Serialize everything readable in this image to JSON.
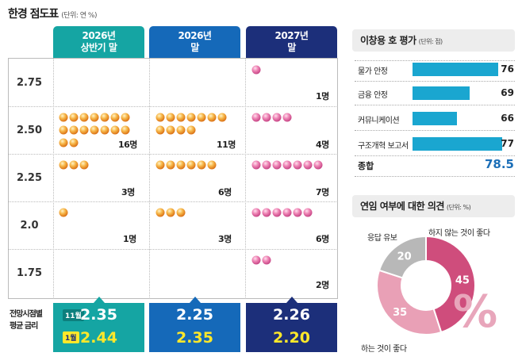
{
  "dot_chart": {
    "title": "한경 점도표",
    "unit": "(단위: 연 %)",
    "columns": [
      {
        "label_line1": "2026년",
        "label_line2": "상반기 말",
        "color": "#15a5a3",
        "dot": "orange"
      },
      {
        "label_line1": "2026년",
        "label_line2": "말",
        "color": "#1569b9",
        "dot": "orange"
      },
      {
        "label_line1": "2027년",
        "label_line2": "말",
        "color": "#1c2f7a",
        "dot": "pink"
      }
    ],
    "rows": [
      "2.75",
      "2.50",
      "2.25",
      "2.0",
      "1.75"
    ],
    "count_labels": [
      [
        "",
        "",
        "1명"
      ],
      [
        "16명",
        "11명",
        "4명"
      ],
      [
        "3명",
        "6명",
        "7명"
      ],
      [
        "1명",
        "3명",
        "6명"
      ],
      [
        "",
        "",
        "2명"
      ]
    ],
    "legend_line1": "전망시점별",
    "legend_line2": "평균 금리",
    "month_nov": "11월",
    "month_jan": "1월",
    "averages_nov": [
      "2.35",
      "2.25",
      "2.26"
    ],
    "averages_jan": [
      "2.44",
      "2.35",
      "2.20"
    ]
  },
  "chart_data": [
    {
      "type": "scatter",
      "title": "한경 점도표",
      "unit": "(단위: 연 %)",
      "categories": [
        "2026년 상반기 말",
        "2026년 말",
        "2027년 말"
      ],
      "y_levels": [
        2.75,
        2.5,
        2.25,
        2.0,
        1.75
      ],
      "counts": [
        [
          0,
          16,
          3,
          1,
          0
        ],
        [
          0,
          11,
          6,
          3,
          0
        ],
        [
          1,
          4,
          7,
          6,
          2
        ]
      ],
      "averages": [
        {
          "label": "11월",
          "values": [
            2.35,
            2.25,
            2.26
          ]
        },
        {
          "label": "1월",
          "values": [
            2.44,
            2.35,
            2.2
          ]
        }
      ]
    },
    {
      "type": "bar",
      "title": "이창용 호 평가",
      "unit": "(단위: 점)",
      "categories": [
        "물가 안정",
        "금융 안정",
        "커뮤니케이션",
        "구조개혁 보고서"
      ],
      "values": [
        76,
        69,
        66,
        77
      ],
      "total_label": "종합",
      "total_value": "78.5",
      "xlim": [
        0,
        100
      ]
    },
    {
      "type": "pie",
      "title": "연임 여부에 대한 의견",
      "unit": "(단위: %)",
      "labels": [
        "하지 않는 것이 좋다",
        "하는 것이 좋다",
        "응답 유보"
      ],
      "values": [
        45,
        35,
        20
      ],
      "colors": [
        "#cf4d7c",
        "#e9a0b6",
        "#b8b8b8"
      ]
    }
  ],
  "eval": {
    "title": "이창용 호 평가",
    "unit": "(단위: 점)",
    "items": [
      {
        "label": "물가 안정",
        "value": "76"
      },
      {
        "label": "금융 안정",
        "value": "69"
      },
      {
        "label": "커뮤니케이션",
        "value": "66"
      },
      {
        "label": "구조개혁 보고서",
        "value": "77"
      }
    ],
    "total_label": "종합",
    "total_value": "78.5",
    "bar_color": "#1aa6d0"
  },
  "donut": {
    "title": "연임 여부에 대한 의견",
    "unit": "(단위: %)",
    "segments": [
      {
        "label": "하지 않는 것이 좋다",
        "value": "45",
        "color": "#cf4d7c"
      },
      {
        "label": "하는 것이 좋다",
        "value": "35",
        "color": "#e9a0b6"
      },
      {
        "label": "응답 유보",
        "value": "20",
        "color": "#b8b8b8"
      }
    ],
    "percent_sign": "%"
  }
}
